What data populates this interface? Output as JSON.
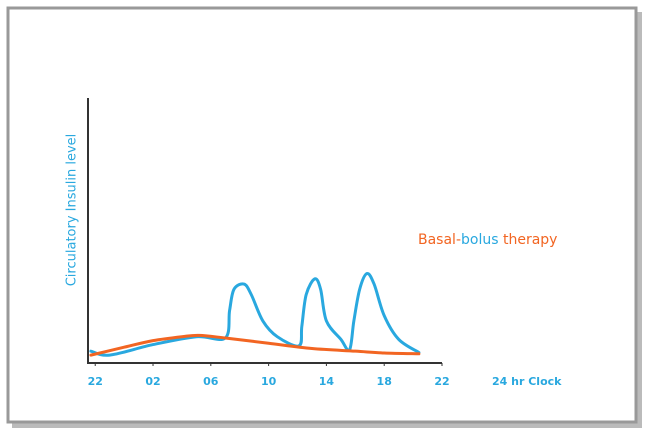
{
  "chart_data": {
    "type": "line",
    "ylabel": "Circulatory Insulin level",
    "xlabel": "24 hr Clock",
    "annotation": [
      {
        "text": "Basal-",
        "color": "#f26522"
      },
      {
        "text": "bolus",
        "color": "#29a8df"
      },
      {
        "text": " therapy",
        "color": "#f26522"
      }
    ],
    "xlim": [
      -0.5,
      24
    ],
    "ylim": [
      0,
      10
    ],
    "xticks": [
      {
        "value": 0,
        "label": "22"
      },
      {
        "value": 4,
        "label": "02"
      },
      {
        "value": 8,
        "label": "06"
      },
      {
        "value": 12,
        "label": "10"
      },
      {
        "value": 16,
        "label": "14"
      },
      {
        "value": 20,
        "label": "18"
      },
      {
        "value": 24,
        "label": "22"
      }
    ],
    "series": [
      {
        "color": "#29a8df",
        "x": [
          -0.3,
          1,
          4,
          7,
          9,
          9.3,
          9.6,
          10.3,
          10.8,
          11.6,
          12.6,
          14.1,
          14.3,
          14.6,
          15.2,
          15.6,
          16.0,
          17.0,
          17.6,
          17.9,
          18.3,
          18.8,
          19.3,
          20.0,
          21.0,
          22.4
        ],
        "values": [
          0.45,
          0.3,
          0.7,
          1.0,
          0.95,
          2.0,
          2.8,
          3.0,
          2.6,
          1.6,
          1.0,
          0.65,
          1.4,
          2.6,
          3.2,
          2.8,
          1.6,
          0.9,
          0.5,
          1.6,
          2.8,
          3.4,
          3.0,
          1.8,
          0.9,
          0.4
        ]
      },
      {
        "color": "#f26522",
        "x": [
          -0.3,
          2,
          4,
          6,
          7.2,
          9,
          12,
          15,
          18,
          20,
          22.4
        ],
        "values": [
          0.3,
          0.6,
          0.85,
          1.0,
          1.05,
          0.95,
          0.75,
          0.55,
          0.45,
          0.38,
          0.35
        ]
      }
    ]
  }
}
